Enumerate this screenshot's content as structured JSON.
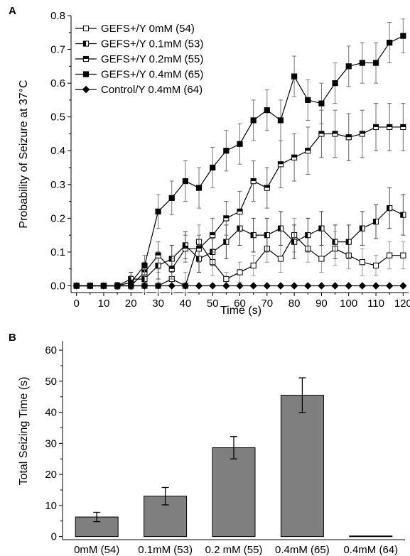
{
  "panels": {
    "a": "A",
    "b": "B"
  },
  "chart_data": [
    {
      "type": "line",
      "xlabel": "Time (s)",
      "ylabel": "Probability of Seizure at 37°C",
      "xlim": [
        -2,
        122
      ],
      "ylim": [
        -0.02,
        0.8
      ],
      "x": [
        0,
        5,
        10,
        15,
        20,
        25,
        30,
        35,
        40,
        45,
        50,
        55,
        60,
        65,
        70,
        75,
        80,
        85,
        90,
        95,
        100,
        105,
        110,
        115,
        120
      ],
      "xticks": [
        "0",
        "10",
        "20",
        "30",
        "40",
        "50",
        "60",
        "70",
        "80",
        "90",
        "100",
        "110",
        "120"
      ],
      "yticks": [
        "0.0",
        "0.1",
        "0.2",
        "0.3",
        "0.4",
        "0.5",
        "0.6",
        "0.7",
        "0.8"
      ],
      "legend_position": "top-left",
      "series": [
        {
          "name": "GEFS+/Y 0mM (54)",
          "marker": "open-square",
          "values": [
            0,
            0,
            0,
            0,
            0,
            0,
            0,
            0.02,
            0,
            0.13,
            0.07,
            0.02,
            0.04,
            0.06,
            0.11,
            0.08,
            0.15,
            0.11,
            0.08,
            0.11,
            0.09,
            0.07,
            0.06,
            0.09,
            0.09
          ],
          "errors": [
            0,
            0,
            0,
            0.01,
            0.01,
            0.02,
            0.04,
            0.04,
            0.04,
            0.05,
            0.04,
            0.02,
            0.03,
            0.03,
            0.04,
            0.04,
            0.05,
            0.04,
            0.04,
            0.05,
            0.04,
            0.04,
            0.03,
            0.04,
            0.04
          ]
        },
        {
          "name": "GEFS+/Y  0.1mM (53)",
          "marker": "half-filled-square-left",
          "values": [
            0,
            0,
            0,
            0,
            0.02,
            0.02,
            0.06,
            0.08,
            0.12,
            0.08,
            0.1,
            0.13,
            0.17,
            0.15,
            0.15,
            0.17,
            0.13,
            0.15,
            0.17,
            0.13,
            0.13,
            0.17,
            0.19,
            0.23,
            0.21
          ],
          "errors": [
            0,
            0,
            0,
            0.01,
            0.02,
            0.02,
            0.04,
            0.04,
            0.04,
            0.04,
            0.04,
            0.05,
            0.05,
            0.05,
            0.05,
            0.05,
            0.05,
            0.05,
            0.05,
            0.05,
            0.05,
            0.05,
            0.05,
            0.06,
            0.06
          ]
        },
        {
          "name": "GEFS+/Y 0.2mM (55)",
          "marker": "half-filled-square-top",
          "values": [
            0,
            0,
            0,
            0,
            0,
            0.04,
            0.09,
            0.05,
            0.11,
            0.11,
            0.15,
            0.2,
            0.22,
            0.31,
            0.29,
            0.36,
            0.38,
            0.4,
            0.45,
            0.45,
            0.44,
            0.45,
            0.47,
            0.47,
            0.47
          ],
          "errors": [
            0,
            0,
            0,
            0.01,
            0.01,
            0.03,
            0.04,
            0.03,
            0.04,
            0.04,
            0.05,
            0.05,
            0.06,
            0.06,
            0.06,
            0.07,
            0.07,
            0.07,
            0.07,
            0.07,
            0.07,
            0.07,
            0.07,
            0.07,
            0.07
          ]
        },
        {
          "name": "GEFS+/Y 0.4mM (65)",
          "marker": "filled-square",
          "values": [
            0,
            0,
            0,
            0,
            0.01,
            0.06,
            0.22,
            0.26,
            0.31,
            0.29,
            0.35,
            0.4,
            0.42,
            0.49,
            0.52,
            0.49,
            0.62,
            0.55,
            0.54,
            0.6,
            0.65,
            0.66,
            0.66,
            0.72,
            0.74
          ],
          "errors": [
            0,
            0,
            0,
            0.01,
            0.02,
            0.03,
            0.05,
            0.05,
            0.06,
            0.06,
            0.06,
            0.06,
            0.06,
            0.06,
            0.06,
            0.06,
            0.06,
            0.06,
            0.06,
            0.06,
            0.06,
            0.06,
            0.06,
            0.06,
            0.05
          ]
        },
        {
          "name": "Control/Y 0.4mM (64)",
          "marker": "filled-diamond",
          "values": [
            0,
            0,
            0,
            0,
            0,
            0,
            0,
            0,
            0,
            0,
            0,
            0,
            0,
            0,
            0,
            0,
            0,
            0,
            0,
            0,
            0,
            0,
            0,
            0,
            0
          ],
          "errors": [
            0,
            0,
            0,
            0,
            0,
            0,
            0,
            0,
            0,
            0,
            0,
            0,
            0,
            0,
            0,
            0,
            0,
            0,
            0,
            0,
            0,
            0,
            0,
            0,
            0
          ]
        }
      ]
    },
    {
      "type": "bar",
      "ylabel": "Total Seizing Time (s)",
      "ylim": [
        -1,
        63
      ],
      "yticks": [
        "0",
        "10",
        "20",
        "30",
        "40",
        "50",
        "60"
      ],
      "categories": [
        "0mM (54)",
        "0.1mM (53)",
        "0.2 mM (55)",
        "0.4mM (65)",
        "0.4mM (64)"
      ],
      "values": [
        6.3,
        13.0,
        28.6,
        45.5,
        0.2
      ],
      "errors": [
        1.5,
        2.8,
        3.6,
        5.6,
        0
      ],
      "groups": [
        {
          "label": "GEFS+/Y",
          "categories": [
            "0mM (54)",
            "0.1mM (53)",
            "0.2 mM (55)",
            "0.4mM (65)"
          ]
        },
        {
          "label": "Control/Y",
          "categories": [
            "0.4mM (64)"
          ]
        }
      ],
      "bar_color": "#7f7f7f"
    }
  ]
}
